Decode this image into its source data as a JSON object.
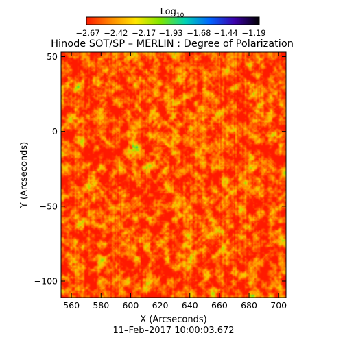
{
  "chart_data": {
    "type": "heatmap",
    "title": "Hinode SOT/SP – MERLIN : Degree of Polarization",
    "xlabel": "X (Arcseconds)",
    "ylabel": "Y (Arcseconds)",
    "subtitle": "11–Feb–2017  10:00:03.672",
    "xlim": [
      553,
      705
    ],
    "ylim": [
      -111,
      53
    ],
    "x_ticks": [
      560,
      580,
      600,
      620,
      640,
      660,
      680,
      700
    ],
    "x_tick_labels": [
      "560",
      "580",
      "600",
      "620",
      "640",
      "660",
      "680",
      "700"
    ],
    "y_ticks": [
      50,
      0,
      -50,
      -100
    ],
    "y_tick_labels": [
      "50",
      "0",
      "−50",
      "−100"
    ],
    "colorbar": {
      "label_base": "Log",
      "label_sub": "10",
      "ticks": [
        -2.67,
        -2.42,
        -2.17,
        -1.93,
        -1.68,
        -1.44,
        -1.19
      ],
      "tick_labels": [
        "−2.67",
        "−2.42",
        "−2.17",
        "−1.93",
        "−1.68",
        "−1.44",
        "−1.19"
      ],
      "range": [
        -2.67,
        -1.19
      ],
      "colors": [
        "#ff1a00",
        "#ff8a00",
        "#ffe600",
        "#7ee600",
        "#00d2b4",
        "#0064ff",
        "#3c00aa",
        "#000000"
      ]
    },
    "grid": false
  }
}
